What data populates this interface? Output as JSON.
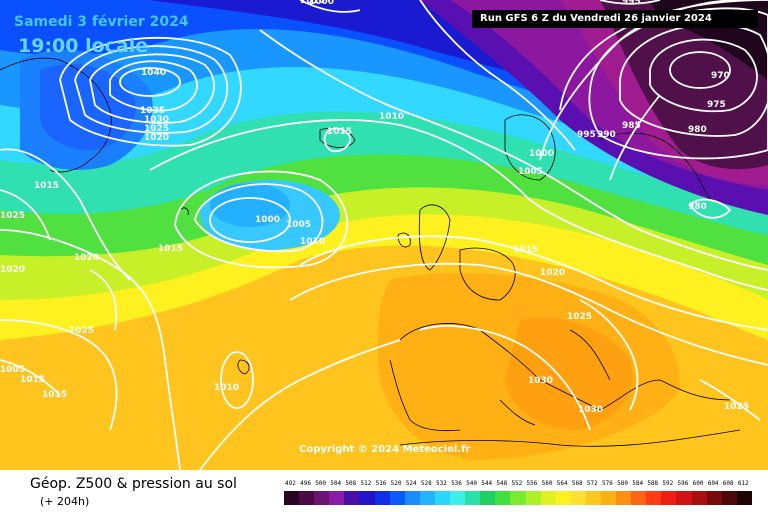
{
  "header": {
    "date": "Samedi 3 février 2024",
    "hour": "19:00 locale",
    "run": "Run GFS 6 Z du Vendredi 26 janvier 2024"
  },
  "copyright": "Copyright © 2024 Meteociel.fr",
  "footer": {
    "title": "Géop. Z500 & pression au sol",
    "subtitle": "(+ 204h)"
  },
  "scale": {
    "labels": [
      "492",
      "496",
      "500",
      "504",
      "508",
      "512",
      "516",
      "520",
      "524",
      "528",
      "532",
      "536",
      "540",
      "544",
      "548",
      "552",
      "556",
      "560",
      "564",
      "568",
      "572",
      "576",
      "580",
      "584",
      "588",
      "592",
      "596",
      "600",
      "604",
      "608",
      "612"
    ],
    "colors": [
      "#2a0420",
      "#4a0a45",
      "#6b1275",
      "#8b1ca8",
      "#4b0fa8",
      "#2214c8",
      "#1030e8",
      "#0a5aff",
      "#1a8cff",
      "#22b4ff",
      "#2ad8ff",
      "#3af0e8",
      "#28e0a8",
      "#20d060",
      "#40e040",
      "#7aec30",
      "#b0f028",
      "#e0f020",
      "#fff020",
      "#ffe030",
      "#ffc81e",
      "#ffb014",
      "#ff9014",
      "#ff6414",
      "#ff3c14",
      "#f01e14",
      "#d01414",
      "#a81010",
      "#780c0c",
      "#4a0808",
      "#200404"
    ]
  },
  "isobars": [
    {
      "label": "1040"
    },
    {
      "label": "1035"
    },
    {
      "label": "1030"
    },
    {
      "label": "1025"
    },
    {
      "label": "1020"
    },
    {
      "label": "1015"
    },
    {
      "label": "1010"
    },
    {
      "label": "1015"
    },
    {
      "label": "1015"
    },
    {
      "label": "1025"
    },
    {
      "label": "1020"
    },
    {
      "label": "1020"
    },
    {
      "label": "1015"
    },
    {
      "label": "1000"
    },
    {
      "label": "1005"
    },
    {
      "label": "1010"
    },
    {
      "label": "1015"
    },
    {
      "label": "1020"
    },
    {
      "label": "1025"
    },
    {
      "label": "1025"
    },
    {
      "label": "1015"
    },
    {
      "label": "1005"
    },
    {
      "label": "1010"
    },
    {
      "label": "1010"
    },
    {
      "label": "1030"
    },
    {
      "label": "1030"
    },
    {
      "label": "1025"
    },
    {
      "label": "1000"
    },
    {
      "label": "1005"
    },
    {
      "label": "995"
    },
    {
      "label": "990"
    },
    {
      "label": "985"
    },
    {
      "label": "980"
    },
    {
      "label": "975"
    },
    {
      "label": "970"
    },
    {
      "label": "980"
    },
    {
      "label": "1000"
    },
    {
      "label": "995"
    }
  ]
}
